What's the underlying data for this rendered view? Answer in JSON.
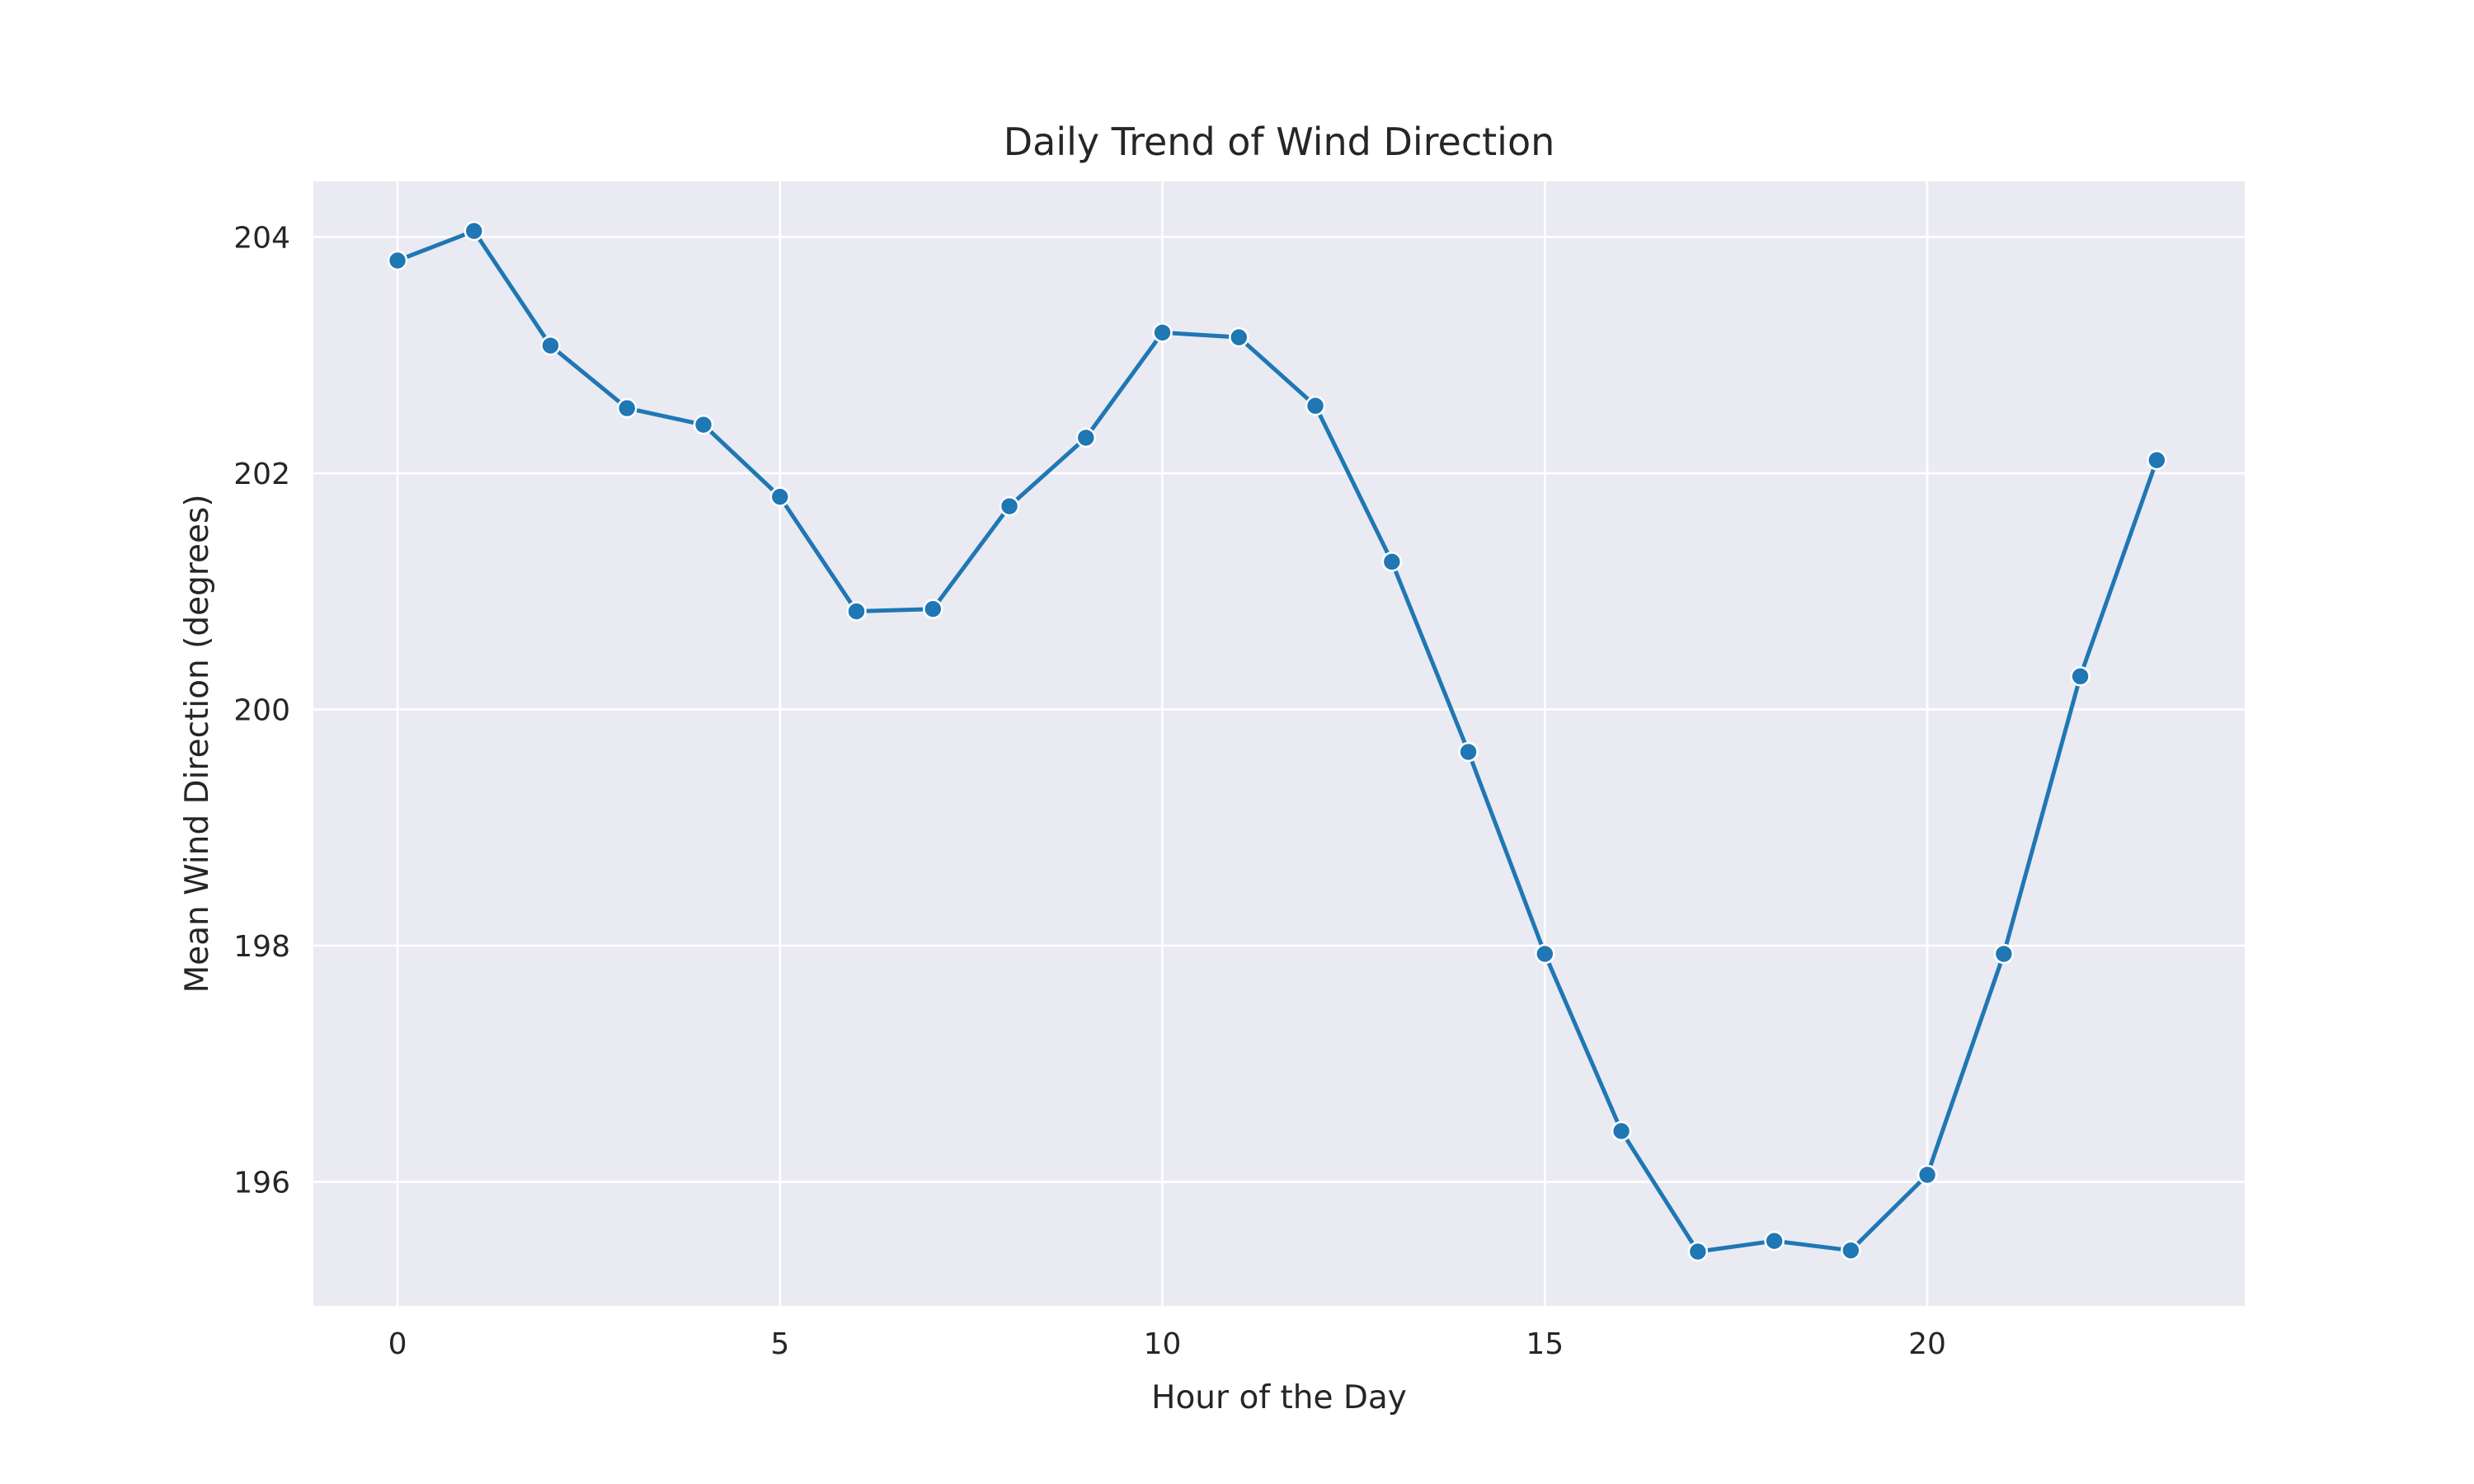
{
  "chart_data": {
    "type": "line",
    "title": "Daily Trend of Wind Direction",
    "xlabel": "Hour of the Day",
    "ylabel": "Mean Wind Direction (degrees)",
    "x": [
      0,
      1,
      2,
      3,
      4,
      5,
      6,
      7,
      8,
      9,
      10,
      11,
      12,
      13,
      14,
      15,
      16,
      17,
      18,
      19,
      20,
      21,
      22,
      23
    ],
    "series": [
      {
        "values": [
          203.8,
          204.05,
          203.08,
          202.55,
          202.41,
          201.8,
          200.83,
          200.85,
          201.72,
          202.3,
          203.19,
          203.15,
          202.57,
          201.25,
          199.64,
          197.93,
          196.43,
          195.41,
          195.5,
          195.42,
          196.06,
          197.93,
          200.28,
          202.11
        ]
      }
    ],
    "xlim": [
      -1.1,
      24.15
    ],
    "ylim": [
      194.95,
      204.47
    ],
    "xticks": [
      0,
      5,
      10,
      15,
      20
    ],
    "yticks": [
      196,
      198,
      200,
      202,
      204
    ],
    "grid": true,
    "colors": {
      "background": "#eaeaf2",
      "grid": "#ffffff",
      "line": "#1f77b4",
      "marker_edge": "#ffffff"
    }
  }
}
